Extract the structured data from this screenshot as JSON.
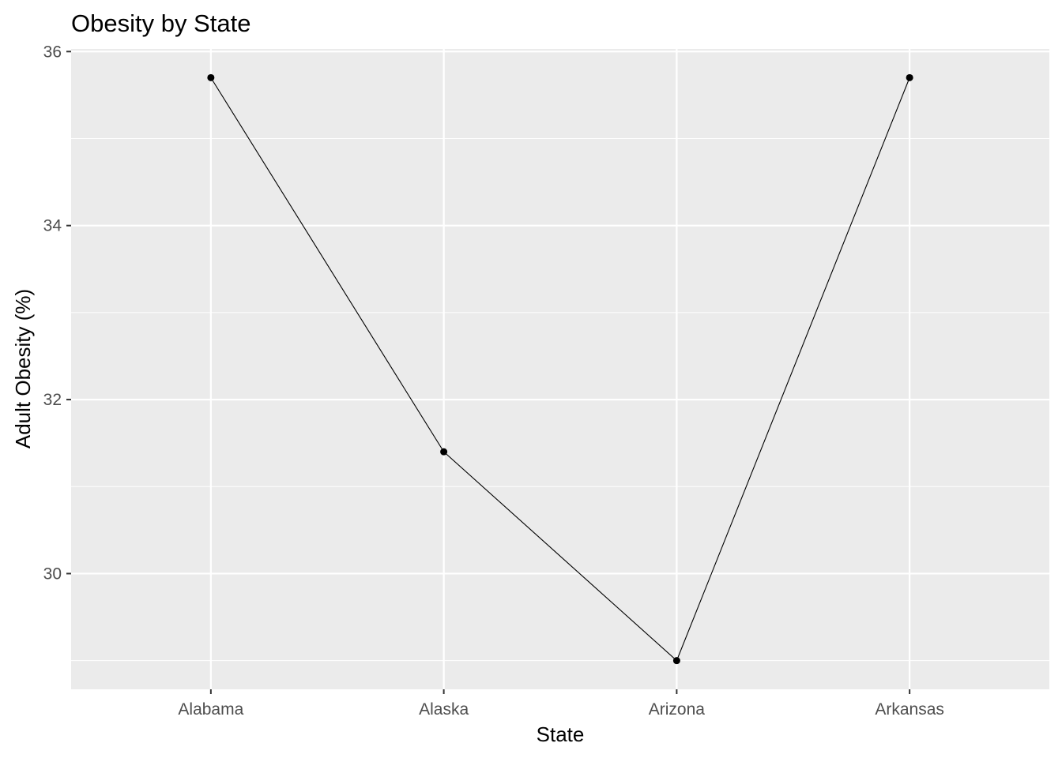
{
  "chart_data": {
    "type": "line",
    "title": "Obesity by State",
    "xlabel": "State",
    "ylabel": "Adult Obesity (%)",
    "categories": [
      "Alabama",
      "Alaska",
      "Arizona",
      "Arkansas"
    ],
    "series": [
      {
        "values": [
          35.7,
          31.4,
          29.0,
          35.7
        ]
      }
    ],
    "ylim": [
      28.67,
      36.03
    ],
    "y_ticks": [
      30,
      32,
      34,
      36
    ],
    "y_minor_ticks": [
      29,
      31,
      33,
      35
    ],
    "grid": true,
    "legend": "none",
    "colors": {
      "panel_background": "#ebebeb",
      "grid_major": "#ffffff",
      "grid_minor": "#ffffff",
      "line": "#000000",
      "point": "#000000",
      "tick_label": "#4d4d4d",
      "axis_tick": "#333333"
    }
  }
}
